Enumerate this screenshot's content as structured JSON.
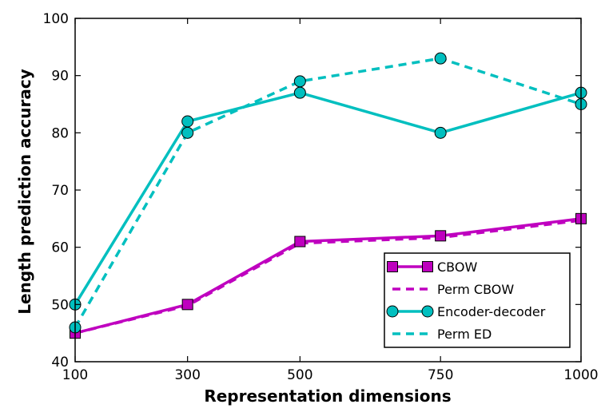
{
  "chart_data": {
    "type": "line",
    "title": "",
    "xlabel": "Representation dimensions",
    "ylabel": "Length prediction accuracy",
    "x": [
      100,
      300,
      500,
      750,
      1000
    ],
    "x_tick_labels": [
      "100",
      "300",
      "500",
      "750",
      "1000"
    ],
    "y_ticks": [
      40,
      50,
      60,
      70,
      80,
      90,
      100
    ],
    "y_tick_labels": [
      "40",
      "50",
      "60",
      "70",
      "80",
      "90",
      "100"
    ],
    "ylim": [
      40,
      100
    ],
    "grid": false,
    "legend_position": "lower-right",
    "series": [
      {
        "name": "CBOW",
        "values": [
          45,
          50,
          61,
          62,
          65
        ],
        "color": "#bf00bf",
        "style": "solid",
        "marker": "square"
      },
      {
        "name": "Perm CBOW",
        "values": [
          45,
          49.8,
          60.7,
          61.7,
          64.7
        ],
        "color": "#bf00bf",
        "style": "dashed",
        "marker": "none"
      },
      {
        "name": "Encoder-decoder",
        "values": [
          50,
          82,
          87,
          80,
          87
        ],
        "color": "#00bfbf",
        "style": "solid",
        "marker": "circle"
      },
      {
        "name": "Perm ED",
        "values": [
          46,
          80,
          89,
          93,
          85
        ],
        "color": "#00bfbf",
        "style": "dashed",
        "marker": "circle"
      }
    ]
  }
}
